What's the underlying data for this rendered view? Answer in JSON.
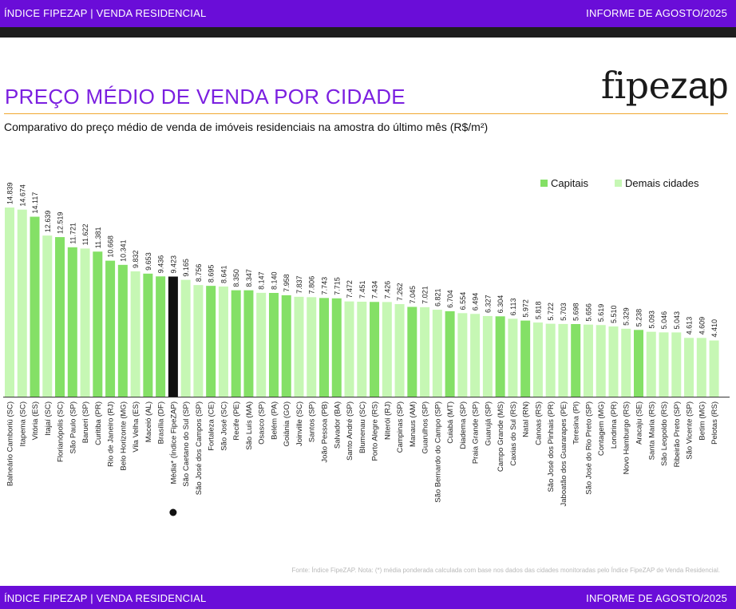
{
  "header": {
    "left": "ÍNDICE FIPEZAP | VENDA RESIDENCIAL",
    "right": "INFORME DE AGOSTO/2025"
  },
  "footer": {
    "left": "ÍNDICE FIPEZAP | VENDA RESIDENCIAL",
    "right": "INFORME DE AGOSTO/2025"
  },
  "logo": {
    "text_a": "fipe",
    "text_b": "zap"
  },
  "chart_data": {
    "type": "bar",
    "title": "PREÇO MÉDIO DE VENDA POR CIDADE",
    "subtitle": "Comparativo do preço médio de venda de imóveis residenciais na amostra do último mês (R$/m²)",
    "legend": [
      "Capitais",
      "Demais cidades"
    ],
    "legend_position": "top-right",
    "colors": {
      "capital": "#84e066",
      "other": "#c6f7b4",
      "average": "#111111"
    },
    "categories": [
      "Balneário Camboriú (SC)",
      "Itapema (SC)",
      "Vitória (ES)",
      "Itajaí (SC)",
      "Florianópolis (SC)",
      "São Paulo (SP)",
      "Barueri (SP)",
      "Curitiba (PR)",
      "Rio de Janeiro (RJ)",
      "Belo Horizonte (MG)",
      "Vila Velha (ES)",
      "Maceió (AL)",
      "Brasília (DF)",
      "Média* (Índice FipeZAP)",
      "São Caetano do Sul (SP)",
      "São José dos Campos (SP)",
      "Fortaleza (CE)",
      "São José (SC)",
      "Recife (PE)",
      "São Luís (MA)",
      "Osasco (SP)",
      "Belém (PA)",
      "Goiânia (GO)",
      "Joinville (SC)",
      "Santos (SP)",
      "João Pessoa (PB)",
      "Salvador (BA)",
      "Santo André (SP)",
      "Blumenau (SC)",
      "Porto Alegre (RS)",
      "Niterói (RJ)",
      "Campinas (SP)",
      "Manaus (AM)",
      "Guarulhos (SP)",
      "São Bernardo do Campo (SP)",
      "Cuiabá (MT)",
      "Diadema (SP)",
      "Praia Grande (SP)",
      "Guarujá (SP)",
      "Campo Grande (MS)",
      "Caxias do Sul (RS)",
      "Natal (RN)",
      "Canoas (RS)",
      "São José dos Pinhais (PR)",
      "Jaboatão dos Guararapes (PE)",
      "Teresina (PI)",
      "São José do Rio Preto (SP)",
      "Contagem (MG)",
      "Londrina (PR)",
      "Novo Hamburgo (RS)",
      "Aracaju (SE)",
      "Santa Maria (RS)",
      "São Leopoldo (RS)",
      "Ribeirão Preto (SP)",
      "São Vicente (SP)",
      "Betim (MG)",
      "Pelotas (RS)"
    ],
    "values": [
      14839,
      14674,
      14117,
      12639,
      12519,
      11721,
      11622,
      11381,
      10668,
      10341,
      9832,
      9653,
      9436,
      9423,
      9165,
      8756,
      8695,
      8641,
      8350,
      8347,
      8147,
      8140,
      7958,
      7837,
      7806,
      7743,
      7715,
      7472,
      7451,
      7434,
      7426,
      7262,
      7045,
      7021,
      6821,
      6704,
      6554,
      6494,
      6327,
      6304,
      6113,
      5972,
      5818,
      5722,
      5703,
      5698,
      5656,
      5619,
      5510,
      5329,
      5238,
      5093,
      5046,
      5043,
      4613,
      4609,
      4410
    ],
    "value_labels": [
      "14.839",
      "14.674",
      "14.117",
      "12.639",
      "12.519",
      "11.721",
      "11.622",
      "11.381",
      "10.668",
      "10.341",
      "9.832",
      "9.653",
      "9.436",
      "9.423",
      "9.165",
      "8.756",
      "8.695",
      "8.641",
      "8.350",
      "8.347",
      "8.147",
      "8.140",
      "7.958",
      "7.837",
      "7.806",
      "7.743",
      "7.715",
      "7.472",
      "7.451",
      "7.434",
      "7.426",
      "7.262",
      "7.045",
      "7.021",
      "6.821",
      "6.704",
      "6.554",
      "6.494",
      "6.327",
      "6.304",
      "6.113",
      "5.972",
      "5.818",
      "5.722",
      "5.703",
      "5.698",
      "5.656",
      "5.619",
      "5.510",
      "5.329",
      "5.238",
      "5.093",
      "5.046",
      "5.043",
      "4.613",
      "4.609",
      "4.410"
    ],
    "group": [
      "other",
      "other",
      "capital",
      "other",
      "capital",
      "capital",
      "other",
      "capital",
      "capital",
      "capital",
      "other",
      "capital",
      "capital",
      "average",
      "other",
      "other",
      "capital",
      "other",
      "capital",
      "capital",
      "other",
      "capital",
      "capital",
      "other",
      "other",
      "capital",
      "capital",
      "other",
      "other",
      "capital",
      "other",
      "other",
      "capital",
      "other",
      "other",
      "capital",
      "other",
      "other",
      "other",
      "capital",
      "other",
      "capital",
      "other",
      "other",
      "other",
      "capital",
      "other",
      "other",
      "other",
      "other",
      "capital",
      "other",
      "other",
      "other",
      "other",
      "other",
      "other"
    ],
    "ylim": [
      0,
      15000
    ],
    "grid": false
  },
  "footnote": "Fonte: Índice FipeZAP. Nota: (*) média ponderada calculada com base nos dados das cidades monitoradas pelo Índice FipeZAP de Venda Residencial."
}
